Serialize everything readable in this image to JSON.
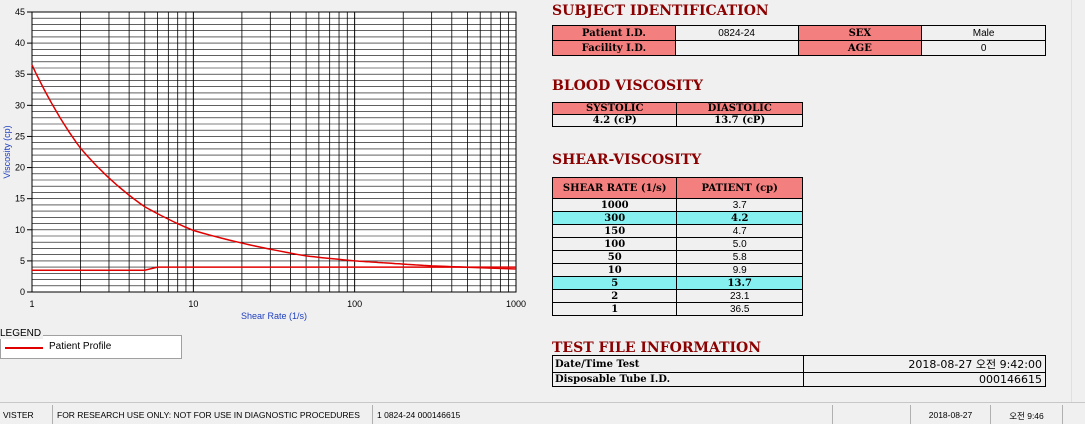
{
  "chart_data": {
    "type": "line",
    "title": "",
    "xlabel": "Shear Rate (1/s)",
    "ylabel": "Viscosity (cp)",
    "x_scale": "log",
    "xlim": [
      1,
      1000
    ],
    "ylim": [
      0,
      45
    ],
    "x_ticks": [
      "1",
      "10",
      "100",
      "1000"
    ],
    "y_ticks": [
      "0",
      "5",
      "10",
      "15",
      "20",
      "25",
      "30",
      "35",
      "40",
      "45"
    ],
    "grid": true,
    "series": [
      {
        "name": "Patient Profile",
        "x": [
          1,
          2,
          5,
          10,
          50,
          100,
          150,
          300,
          1000
        ],
        "y": [
          36.5,
          23.1,
          13.7,
          9.9,
          5.8,
          5.0,
          4.7,
          4.2,
          3.7
        ],
        "color": "#e00000"
      },
      {
        "x": [
          1,
          5,
          6,
          1000
        ],
        "y": [
          3.5,
          3.5,
          4.0,
          4.0
        ],
        "color": "#e00000"
      }
    ]
  },
  "legend": {
    "title": "LEGEND",
    "label": "Patient Profile"
  },
  "subject": {
    "header": "SUBJECT IDENTIFICATION",
    "patient_id_label": "Patient I.D.",
    "patient_id": "0824-24",
    "sex_label": "SEX",
    "sex": "Male",
    "facility_label": "Facility I.D.",
    "facility": "",
    "age_label": "AGE",
    "age": "0"
  },
  "blood": {
    "header": "BLOOD VISCOSITY",
    "systolic_label": "SYSTOLIC",
    "diastolic_label": "DIASTOLIC",
    "systolic": "4.2 (cP)",
    "diastolic": "13.7 (cP)"
  },
  "shear": {
    "header": "SHEAR-VISCOSITY",
    "col_rate": "SHEAR RATE (1/s)",
    "col_patient": "PATIENT (cp)",
    "rows": [
      {
        "rate": "1000",
        "val": "3.7",
        "hl": false
      },
      {
        "rate": "300",
        "val": "4.2",
        "hl": true
      },
      {
        "rate": "150",
        "val": "4.7",
        "hl": false
      },
      {
        "rate": "100",
        "val": "5.0",
        "hl": false
      },
      {
        "rate": "50",
        "val": "5.8",
        "hl": false
      },
      {
        "rate": "10",
        "val": "9.9",
        "hl": false
      },
      {
        "rate": "5",
        "val": "13.7",
        "hl": true
      },
      {
        "rate": "2",
        "val": "23.1",
        "hl": false
      },
      {
        "rate": "1",
        "val": "36.5",
        "hl": false
      }
    ]
  },
  "testfile": {
    "header": "TEST FILE INFORMATION",
    "date_label": "Date/Time Test",
    "date_value": "2018-08-27   오전 9:42:00",
    "tube_label": "Disposable Tube I.D.",
    "tube_value": "000146615"
  },
  "status": {
    "app": "VISTER",
    "notice": "FOR RESEARCH USE ONLY: NOT FOR USE IN DIAGNOSTIC PROCEDURES",
    "record": "1  0824-24  000146615",
    "date": "2018-08-27",
    "time": "오전 9:46"
  }
}
